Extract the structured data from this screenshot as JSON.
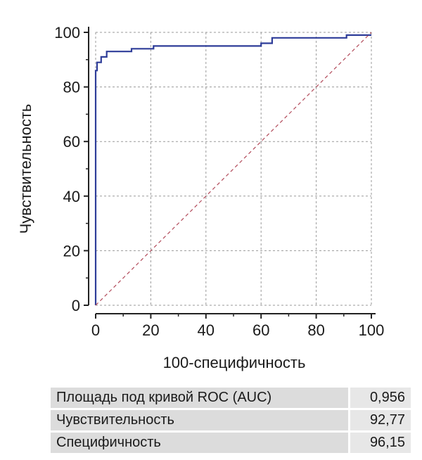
{
  "chart_data": {
    "type": "line",
    "xlabel": "100-специфичность",
    "ylabel": "Чувствительность",
    "xlim": [
      0,
      100
    ],
    "ylim": [
      0,
      100
    ],
    "xticks": [
      0,
      20,
      40,
      60,
      80,
      100
    ],
    "yticks": [
      0,
      20,
      40,
      60,
      80,
      100
    ],
    "grid": true,
    "series": [
      {
        "values_x": [
          0,
          0,
          0.5,
          0.5,
          2,
          2,
          4,
          4,
          13,
          13,
          21,
          21,
          60,
          60,
          64,
          64,
          91,
          91,
          100
        ],
        "values_y": [
          0,
          86,
          86,
          89,
          89,
          91,
          91,
          93,
          93,
          94,
          94,
          95,
          95,
          96,
          96,
          98,
          98,
          99,
          99
        ],
        "color": "#2e3d99",
        "style": "solid"
      },
      {
        "values_x": [
          0,
          100
        ],
        "values_y": [
          0,
          100
        ],
        "color": "#b24a5a",
        "style": "dashed"
      }
    ]
  },
  "stats": [
    {
      "label": "Площадь под кривой ROC (AUC)",
      "value": "0,956"
    },
    {
      "label": "Чувствительность",
      "value": "92,77"
    },
    {
      "label": "Специфичность",
      "value": "96,15"
    }
  ]
}
